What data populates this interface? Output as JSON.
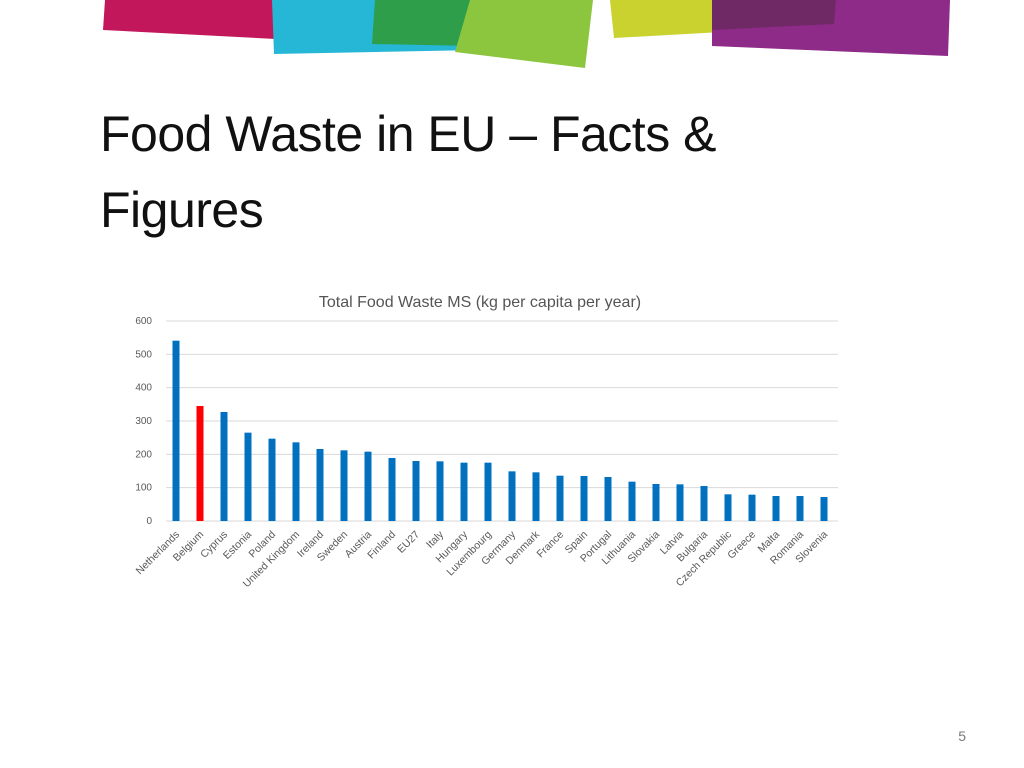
{
  "slide": {
    "title_line1": "Food Waste in EU – Facts &",
    "title_line2": "Figures",
    "page_number": "5"
  },
  "colors": {
    "bar": "#0070C0",
    "highlight": "#FF0000",
    "banner": [
      "#C2185B",
      "#26B6D6",
      "#2E9E4A",
      "#8CC63F",
      "#C9D22F",
      "#8E2A88"
    ]
  },
  "chart_data": {
    "type": "bar",
    "title": "Total Food Waste MS (kg per capita per year)",
    "xlabel": "",
    "ylabel": "",
    "ylim": [
      0,
      600
    ],
    "yticks": [
      0,
      100,
      200,
      300,
      400,
      500,
      600
    ],
    "grid": true,
    "legend": "none",
    "highlight_category": "Belgium",
    "categories": [
      "Netherlands",
      "Belgium",
      "Cyprus",
      "Estonia",
      "Poland",
      "United Kingdom",
      "Ireland",
      "Sweden",
      "Austria",
      "Finland",
      "EU27",
      "Italy",
      "Hungary",
      "Luxembourg",
      "Germany",
      "Denmark",
      "France",
      "Spain",
      "Portugal",
      "Lithuania",
      "Slovakia",
      "Latvia",
      "Bulgaria",
      "Czech Republic",
      "Greece",
      "Malta",
      "Romania",
      "Slovenia"
    ],
    "values": [
      541,
      345,
      327,
      265,
      247,
      236,
      216,
      212,
      208,
      189,
      180,
      179,
      175,
      175,
      149,
      146,
      136,
      135,
      132,
      118,
      111,
      110,
      105,
      80,
      79,
      75,
      75,
      72
    ]
  }
}
